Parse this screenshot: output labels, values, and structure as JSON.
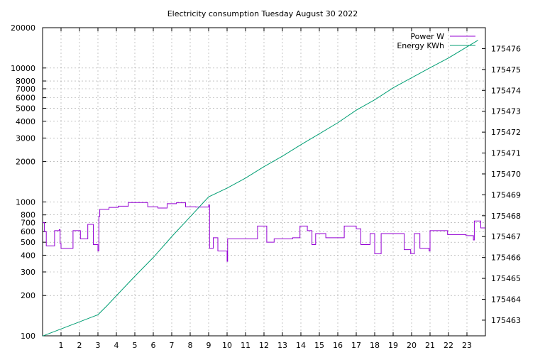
{
  "chart_data": {
    "type": "line",
    "title": "Electricity consumption Tuesday August 30 2022",
    "xlabel": "",
    "ylabel": "",
    "y2label": "",
    "grid": true,
    "legend_position": "top-right",
    "x": {
      "range": [
        0,
        24
      ],
      "ticks": [
        1,
        2,
        3,
        4,
        5,
        6,
        7,
        8,
        9,
        10,
        11,
        12,
        13,
        14,
        15,
        16,
        17,
        18,
        19,
        20,
        21,
        22,
        23
      ]
    },
    "y_left": {
      "scale": "log",
      "range": [
        100,
        20000
      ],
      "ticks": [
        100,
        200,
        300,
        400,
        500,
        600,
        700,
        800,
        1000,
        2000,
        3000,
        4000,
        5000,
        6000,
        7000,
        8000,
        10000,
        20000
      ]
    },
    "y_right": {
      "scale": "linear",
      "range": [
        175462.25,
        175477.0
      ],
      "ticks": [
        175463,
        175464,
        175465,
        175466,
        175467,
        175468,
        175469,
        175470,
        175471,
        175472,
        175473,
        175474,
        175475,
        175476
      ]
    },
    "series": [
      {
        "name": "Power W",
        "axis": "left",
        "color": "#9400d3",
        "step": true,
        "points": [
          [
            0.0,
            700
          ],
          [
            0.1,
            600
          ],
          [
            0.2,
            470
          ],
          [
            0.6,
            470
          ],
          [
            0.65,
            610
          ],
          [
            0.9,
            620
          ],
          [
            0.95,
            490
          ],
          [
            1.0,
            450
          ],
          [
            1.6,
            450
          ],
          [
            1.65,
            610
          ],
          [
            2.0,
            610
          ],
          [
            2.05,
            530
          ],
          [
            2.4,
            530
          ],
          [
            2.45,
            680
          ],
          [
            2.7,
            680
          ],
          [
            2.75,
            480
          ],
          [
            2.95,
            480
          ],
          [
            3.0,
            430
          ],
          [
            3.05,
            780
          ],
          [
            3.1,
            880
          ],
          [
            3.5,
            880
          ],
          [
            3.6,
            910
          ],
          [
            4.0,
            910
          ],
          [
            4.1,
            930
          ],
          [
            4.6,
            930
          ],
          [
            4.65,
            990
          ],
          [
            5.65,
            990
          ],
          [
            5.7,
            920
          ],
          [
            6.2,
            920
          ],
          [
            6.25,
            900
          ],
          [
            6.7,
            900
          ],
          [
            6.75,
            970
          ],
          [
            7.2,
            970
          ],
          [
            7.25,
            985
          ],
          [
            7.7,
            985
          ],
          [
            7.75,
            920
          ],
          [
            8.2,
            920
          ],
          [
            8.3,
            915
          ],
          [
            8.95,
            915
          ],
          [
            9.0,
            950
          ],
          [
            9.05,
            450
          ],
          [
            9.15,
            450
          ],
          [
            9.25,
            540
          ],
          [
            9.45,
            540
          ],
          [
            9.5,
            430
          ],
          [
            9.95,
            430
          ],
          [
            10.0,
            360
          ],
          [
            10.03,
            530
          ],
          [
            11.6,
            530
          ],
          [
            11.65,
            660
          ],
          [
            12.1,
            660
          ],
          [
            12.15,
            500
          ],
          [
            12.5,
            500
          ],
          [
            12.55,
            530
          ],
          [
            13.5,
            530
          ],
          [
            13.55,
            540
          ],
          [
            13.9,
            540
          ],
          [
            13.95,
            660
          ],
          [
            14.3,
            660
          ],
          [
            14.35,
            610
          ],
          [
            14.55,
            610
          ],
          [
            14.6,
            480
          ],
          [
            14.75,
            480
          ],
          [
            14.8,
            580
          ],
          [
            15.3,
            580
          ],
          [
            15.35,
            540
          ],
          [
            16.3,
            540
          ],
          [
            16.35,
            660
          ],
          [
            16.95,
            660
          ],
          [
            17.0,
            630
          ],
          [
            17.2,
            630
          ],
          [
            17.25,
            480
          ],
          [
            17.7,
            480
          ],
          [
            17.75,
            580
          ],
          [
            17.95,
            580
          ],
          [
            18.0,
            410
          ],
          [
            18.3,
            410
          ],
          [
            18.35,
            580
          ],
          [
            19.55,
            580
          ],
          [
            19.6,
            440
          ],
          [
            19.9,
            440
          ],
          [
            19.95,
            410
          ],
          [
            20.1,
            410
          ],
          [
            20.15,
            580
          ],
          [
            20.4,
            580
          ],
          [
            20.45,
            450
          ],
          [
            20.9,
            450
          ],
          [
            20.95,
            430
          ],
          [
            21.0,
            610
          ],
          [
            21.9,
            610
          ],
          [
            21.95,
            570
          ],
          [
            22.9,
            570
          ],
          [
            22.95,
            560
          ],
          [
            23.3,
            560
          ],
          [
            23.35,
            520
          ],
          [
            23.4,
            720
          ],
          [
            23.7,
            720
          ],
          [
            23.75,
            640
          ],
          [
            24.0,
            640
          ]
        ]
      },
      {
        "name": "Energy KWh",
        "axis": "right",
        "color": "#009e73",
        "step": false,
        "points": [
          [
            0.0,
            175462.24
          ],
          [
            1.0,
            175462.58
          ],
          [
            2.0,
            175462.92
          ],
          [
            3.0,
            175463.26
          ],
          [
            3.5,
            175463.7
          ],
          [
            4.0,
            175464.17
          ],
          [
            5.0,
            175465.1
          ],
          [
            6.0,
            175466.0
          ],
          [
            7.0,
            175467.0
          ],
          [
            8.0,
            175467.95
          ],
          [
            9.0,
            175468.9
          ],
          [
            10.0,
            175469.32
          ],
          [
            11.0,
            175469.8
          ],
          [
            12.0,
            175470.35
          ],
          [
            13.0,
            175470.85
          ],
          [
            14.0,
            175471.4
          ],
          [
            15.0,
            175471.92
          ],
          [
            16.0,
            175472.45
          ],
          [
            17.0,
            175473.05
          ],
          [
            18.0,
            175473.55
          ],
          [
            19.0,
            175474.12
          ],
          [
            20.0,
            175474.6
          ],
          [
            21.0,
            175475.08
          ],
          [
            22.0,
            175475.55
          ],
          [
            23.0,
            175476.08
          ],
          [
            23.6,
            175476.4
          ]
        ]
      }
    ]
  }
}
